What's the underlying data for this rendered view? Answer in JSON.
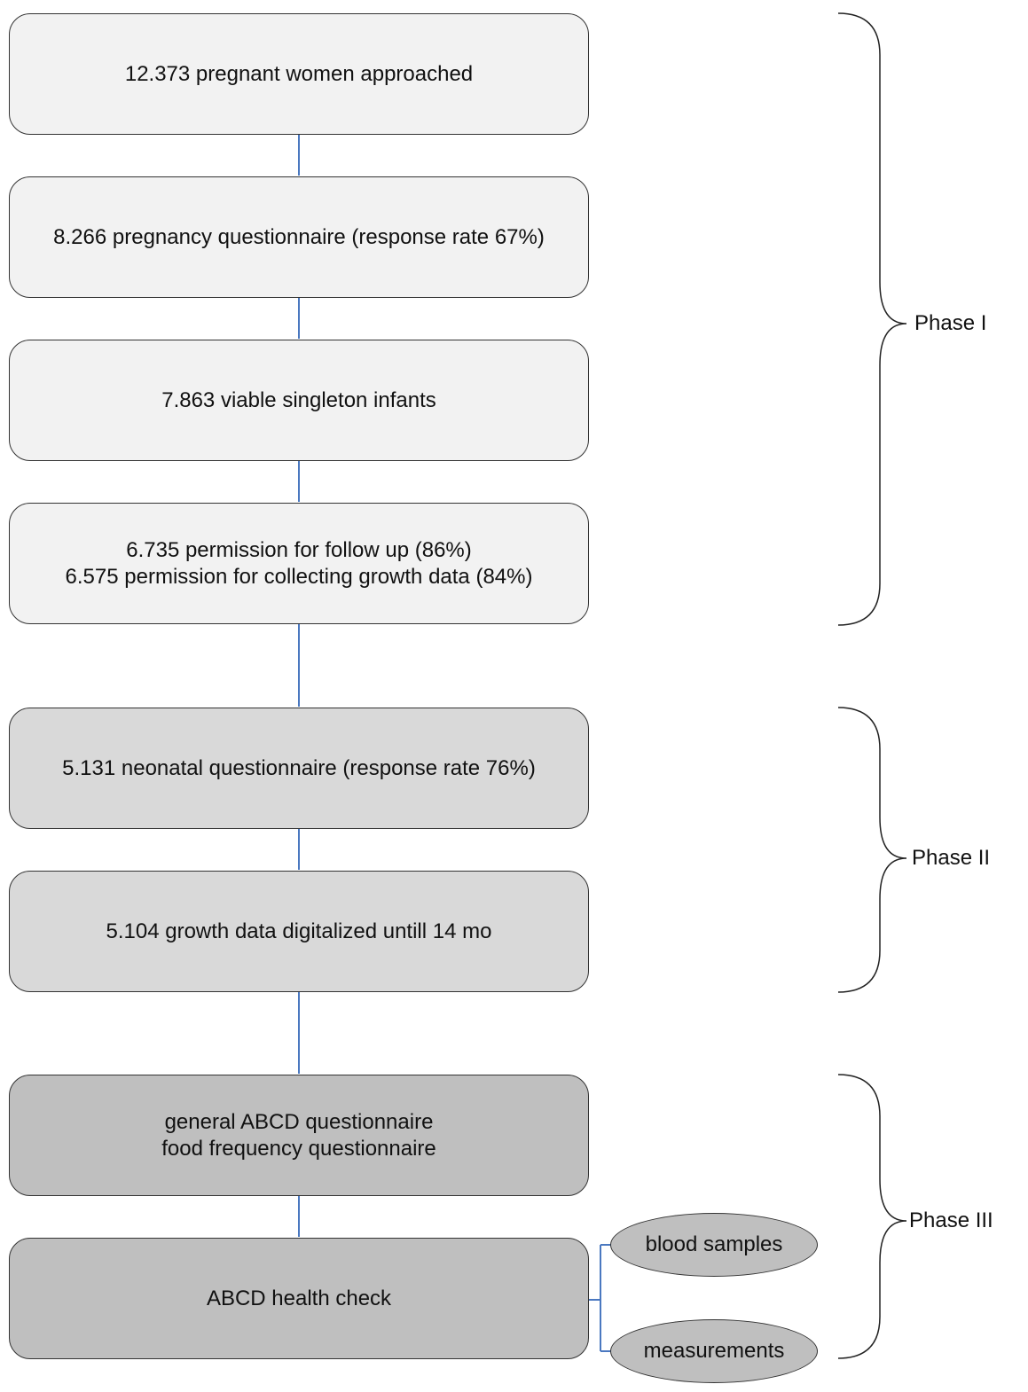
{
  "phase1": {
    "boxes": [
      [
        "12.373 pregnant women approached"
      ],
      [
        "8.266 pregnancy questionnaire (response rate 67%)"
      ],
      [
        "7.863 viable singleton infants"
      ],
      [
        "6.735 permission for follow up (86%)",
        "6.575 permission for collecting growth data (84%)"
      ]
    ],
    "label": "Phase I"
  },
  "phase2": {
    "boxes": [
      [
        "5.131 neonatal questionnaire (response rate 76%)"
      ],
      [
        "5.104 growth data digitalized untill 14 mo"
      ]
    ],
    "label": "Phase II"
  },
  "phase3": {
    "boxes": [
      [
        "general ABCD questionnaire",
        "food frequency questionnaire"
      ],
      [
        "ABCD health check"
      ]
    ],
    "ovals": [
      "blood samples",
      "measurements"
    ],
    "label": "Phase III"
  },
  "colors": {
    "connector": "#4a78c0",
    "phase1_fill": "#f2f2f2",
    "phase2_fill": "#d9d9d9",
    "phase3_fill": "#bfbfbf"
  }
}
